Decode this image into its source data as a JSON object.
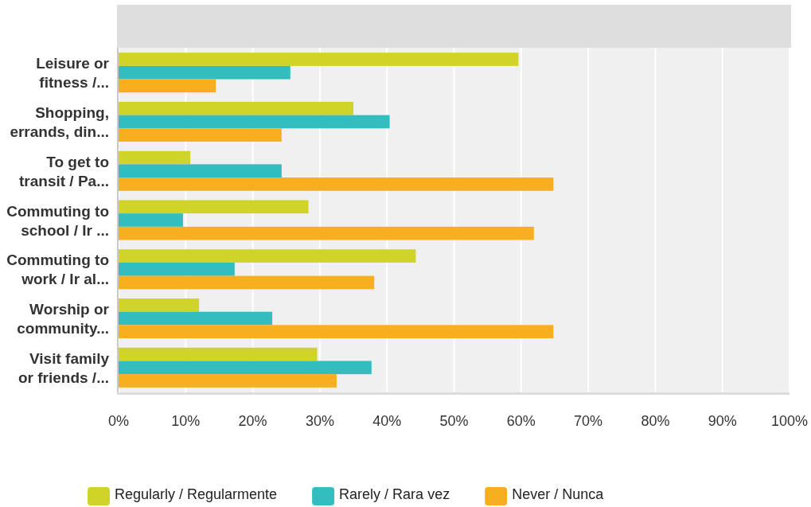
{
  "chart_data": {
    "type": "bar",
    "orientation": "horizontal",
    "categories": [
      "Leisure or fitness /...",
      "Shopping, errands, din...",
      "To get to transit / Pa...",
      "Commuting to school / Ir ...",
      "Commuting to work / Ir al...",
      "Worship or community...",
      "Visit family or friends /..."
    ],
    "series": [
      {
        "name": "Regularly / Regularmente",
        "color": "#d0d428",
        "values": [
          59.6,
          35.0,
          10.7,
          28.3,
          44.3,
          12.0,
          29.6
        ]
      },
      {
        "name": "Rarely / Rara vez",
        "color": "#33bdbf",
        "values": [
          25.6,
          40.4,
          24.3,
          9.6,
          17.3,
          22.9,
          37.7
        ]
      },
      {
        "name": "Never / Nunca",
        "color": "#f7ae1f",
        "values": [
          14.5,
          24.3,
          64.8,
          61.9,
          38.1,
          64.8,
          32.5
        ]
      }
    ],
    "xlim": [
      0,
      100
    ],
    "xticks": [
      {
        "value": 0,
        "label": "0%"
      },
      {
        "value": 10,
        "label": "10%"
      },
      {
        "value": 20,
        "label": "20%"
      },
      {
        "value": 30,
        "label": "30%"
      },
      {
        "value": 40,
        "label": "40%"
      },
      {
        "value": 50,
        "label": "50%"
      },
      {
        "value": 60,
        "label": "60%"
      },
      {
        "value": 70,
        "label": "70%"
      },
      {
        "value": 80,
        "label": "80%"
      },
      {
        "value": 90,
        "label": "90%"
      },
      {
        "value": 100,
        "label": "100%"
      }
    ],
    "grid": "x",
    "legend": "bottom"
  }
}
